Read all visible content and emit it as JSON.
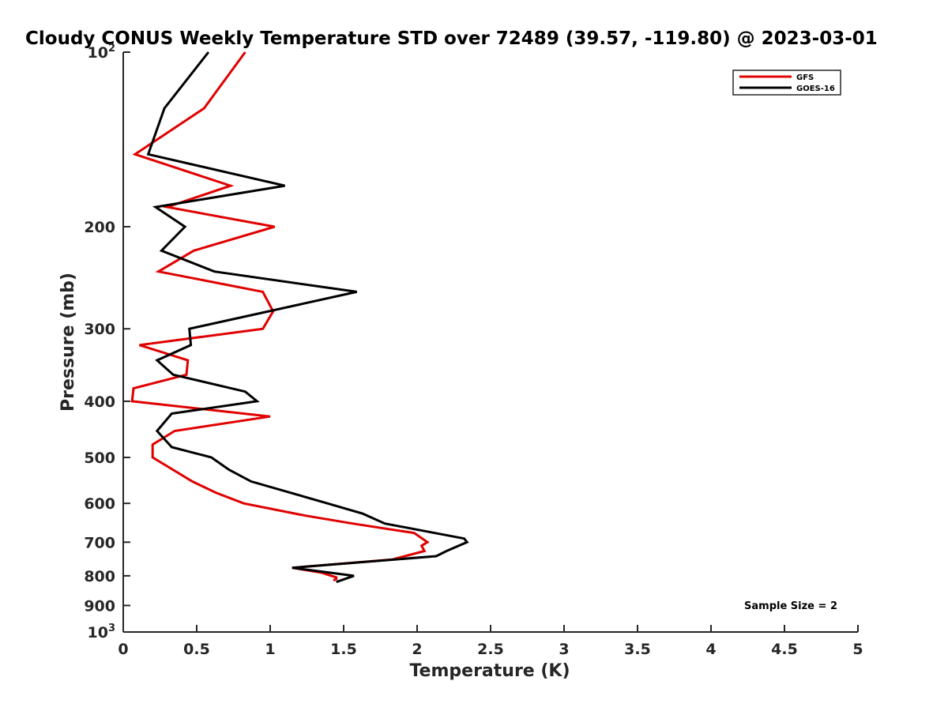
{
  "chart_data": {
    "type": "line",
    "title": "Cloudy CONUS Weekly Temperature STD over 72489 (39.57, -119.80) @ 2023-03-01",
    "xlabel": "Temperature (K)",
    "ylabel": "Pressure (mb)",
    "xlim": [
      0,
      5
    ],
    "ylim": [
      100,
      1000
    ],
    "y_scale": "log",
    "y_reversed": true,
    "grid": false,
    "x_ticks": [
      0,
      0.5,
      1,
      1.5,
      2,
      2.5,
      3,
      3.5,
      4,
      4.5,
      5
    ],
    "x_tick_labels": [
      "0",
      "0.5",
      "1",
      "1.5",
      "2",
      "2.5",
      "3",
      "3.5",
      "4",
      "4.5",
      "5"
    ],
    "y_ticks": [
      {
        "value": 100,
        "base": "10",
        "exp": "2"
      },
      {
        "value": 200,
        "label": "200"
      },
      {
        "value": 300,
        "label": "300"
      },
      {
        "value": 400,
        "label": "400"
      },
      {
        "value": 500,
        "label": "500"
      },
      {
        "value": 600,
        "label": "600"
      },
      {
        "value": 700,
        "label": "700"
      },
      {
        "value": 800,
        "label": "800"
      },
      {
        "value": 900,
        "label": "900"
      },
      {
        "value": 1000,
        "base": "10",
        "exp": "3"
      }
    ],
    "legend_position": "top-right",
    "annotation": "Sample Size = 2",
    "series": [
      {
        "name": "GFS",
        "color": "#e00000",
        "points": [
          {
            "x": 0.83,
            "p": 100
          },
          {
            "x": 0.55,
            "p": 125
          },
          {
            "x": 0.08,
            "p": 150
          },
          {
            "x": 0.73,
            "p": 170
          },
          {
            "x": 0.3,
            "p": 185
          },
          {
            "x": 1.03,
            "p": 200
          },
          {
            "x": 0.48,
            "p": 220
          },
          {
            "x": 0.24,
            "p": 239
          },
          {
            "x": 0.95,
            "p": 259
          },
          {
            "x": 1.02,
            "p": 280
          },
          {
            "x": 0.95,
            "p": 300
          },
          {
            "x": 0.11,
            "p": 320
          },
          {
            "x": 0.44,
            "p": 340
          },
          {
            "x": 0.43,
            "p": 360
          },
          {
            "x": 0.07,
            "p": 380
          },
          {
            "x": 0.06,
            "p": 400
          },
          {
            "x": 1.0,
            "p": 425
          },
          {
            "x": 0.35,
            "p": 450
          },
          {
            "x": 0.2,
            "p": 475
          },
          {
            "x": 0.2,
            "p": 500
          },
          {
            "x": 0.47,
            "p": 550
          },
          {
            "x": 0.63,
            "p": 575
          },
          {
            "x": 0.82,
            "p": 600
          },
          {
            "x": 1.24,
            "p": 630
          },
          {
            "x": 1.56,
            "p": 650
          },
          {
            "x": 1.98,
            "p": 675
          },
          {
            "x": 2.07,
            "p": 700
          },
          {
            "x": 2.03,
            "p": 710
          },
          {
            "x": 2.05,
            "p": 725
          },
          {
            "x": 1.83,
            "p": 750
          },
          {
            "x": 1.15,
            "p": 775
          },
          {
            "x": 1.35,
            "p": 790
          },
          {
            "x": 1.45,
            "p": 805
          },
          {
            "x": 1.45,
            "p": 810
          },
          {
            "x": 1.43,
            "p": 815
          }
        ]
      },
      {
        "name": "GOES-16",
        "color": "#000000",
        "points": [
          {
            "x": 0.58,
            "p": 100
          },
          {
            "x": 0.28,
            "p": 125
          },
          {
            "x": 0.17,
            "p": 150
          },
          {
            "x": 1.1,
            "p": 170
          },
          {
            "x": 0.22,
            "p": 185
          },
          {
            "x": 0.42,
            "p": 200
          },
          {
            "x": 0.26,
            "p": 220
          },
          {
            "x": 0.62,
            "p": 239
          },
          {
            "x": 1.59,
            "p": 259
          },
          {
            "x": 0.45,
            "p": 300
          },
          {
            "x": 0.46,
            "p": 320
          },
          {
            "x": 0.23,
            "p": 340
          },
          {
            "x": 0.34,
            "p": 360
          },
          {
            "x": 0.83,
            "p": 385
          },
          {
            "x": 0.91,
            "p": 400
          },
          {
            "x": 0.33,
            "p": 420
          },
          {
            "x": 0.23,
            "p": 450
          },
          {
            "x": 0.33,
            "p": 480
          },
          {
            "x": 0.6,
            "p": 500
          },
          {
            "x": 0.72,
            "p": 525
          },
          {
            "x": 0.87,
            "p": 550
          },
          {
            "x": 1.39,
            "p": 600
          },
          {
            "x": 1.63,
            "p": 625
          },
          {
            "x": 1.78,
            "p": 650
          },
          {
            "x": 2.32,
            "p": 690
          },
          {
            "x": 2.34,
            "p": 700
          },
          {
            "x": 2.2,
            "p": 725
          },
          {
            "x": 2.13,
            "p": 740
          },
          {
            "x": 1.15,
            "p": 775
          },
          {
            "x": 1.57,
            "p": 800
          },
          {
            "x": 1.45,
            "p": 820
          }
        ]
      }
    ]
  }
}
